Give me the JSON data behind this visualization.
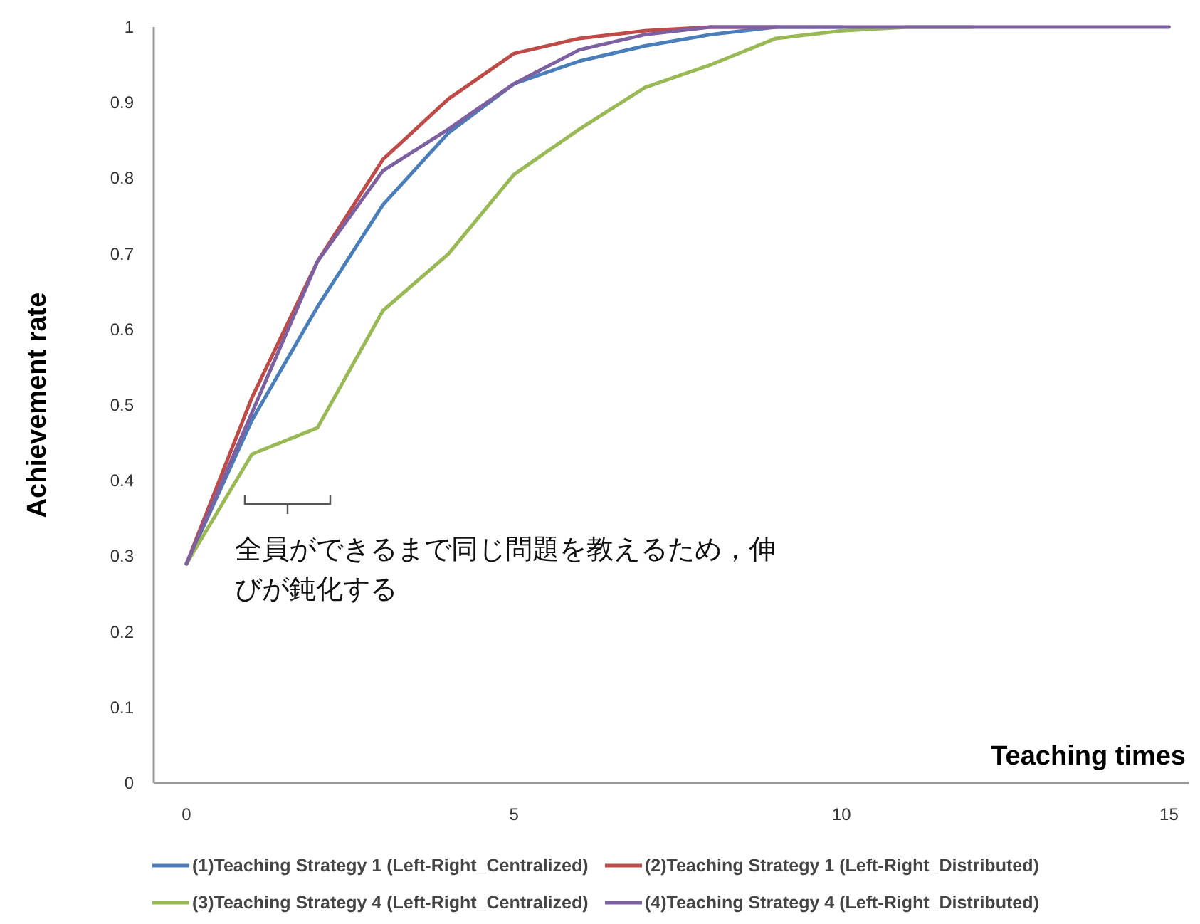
{
  "chart_data": {
    "type": "line",
    "xlabel": "Teaching times",
    "ylabel": "Achievement rate",
    "x": [
      0,
      1,
      2,
      3,
      4,
      5,
      6,
      7,
      8,
      9,
      10,
      11,
      12,
      13,
      14,
      15
    ],
    "series": [
      {
        "name": "(1)Teaching Strategy 1 (Left-Right_Centralized)",
        "color": "#4a7ebb",
        "values": [
          0.29,
          0.48,
          0.63,
          0.765,
          0.86,
          0.925,
          0.955,
          0.975,
          0.99,
          1,
          1,
          null,
          null,
          null,
          null,
          null
        ]
      },
      {
        "name": "(2)Teaching Strategy 1 (Left-Right_Distributed)",
        "color": "#be4b48",
        "values": [
          0.29,
          0.51,
          0.69,
          0.825,
          0.905,
          0.965,
          0.985,
          0.995,
          1,
          1,
          null,
          null,
          null,
          null,
          null,
          null
        ]
      },
      {
        "name": "(3)Teaching Strategy 4 (Left-Right_Centralized)",
        "color": "#98b954",
        "values": [
          0.29,
          0.435,
          0.47,
          0.625,
          0.7,
          0.805,
          0.865,
          0.92,
          0.95,
          0.985,
          0.995,
          1,
          1,
          null,
          null,
          null
        ]
      },
      {
        "name": "(4)Teaching Strategy 4 (Left-Right_Distributed)",
        "color": "#7d60a0",
        "values": [
          0.29,
          0.49,
          0.69,
          0.81,
          0.865,
          0.925,
          0.97,
          0.99,
          1,
          1,
          1,
          1,
          1,
          1,
          1,
          1
        ]
      }
    ],
    "xlim": [
      -0.5,
      15.3
    ],
    "ylim": [
      0,
      1
    ],
    "xticks": [
      0,
      5,
      10,
      15
    ],
    "yticks": [
      0,
      0.1,
      0.2,
      0.3,
      0.4,
      0.5,
      0.6,
      0.7,
      0.8,
      0.9,
      1
    ],
    "annotations": [
      "全員ができるまで同じ問題を教えるため，伸びが鈍化する"
    ],
    "grid": false,
    "legend": "bottom",
    "marker": "none",
    "line_style": "solid"
  }
}
